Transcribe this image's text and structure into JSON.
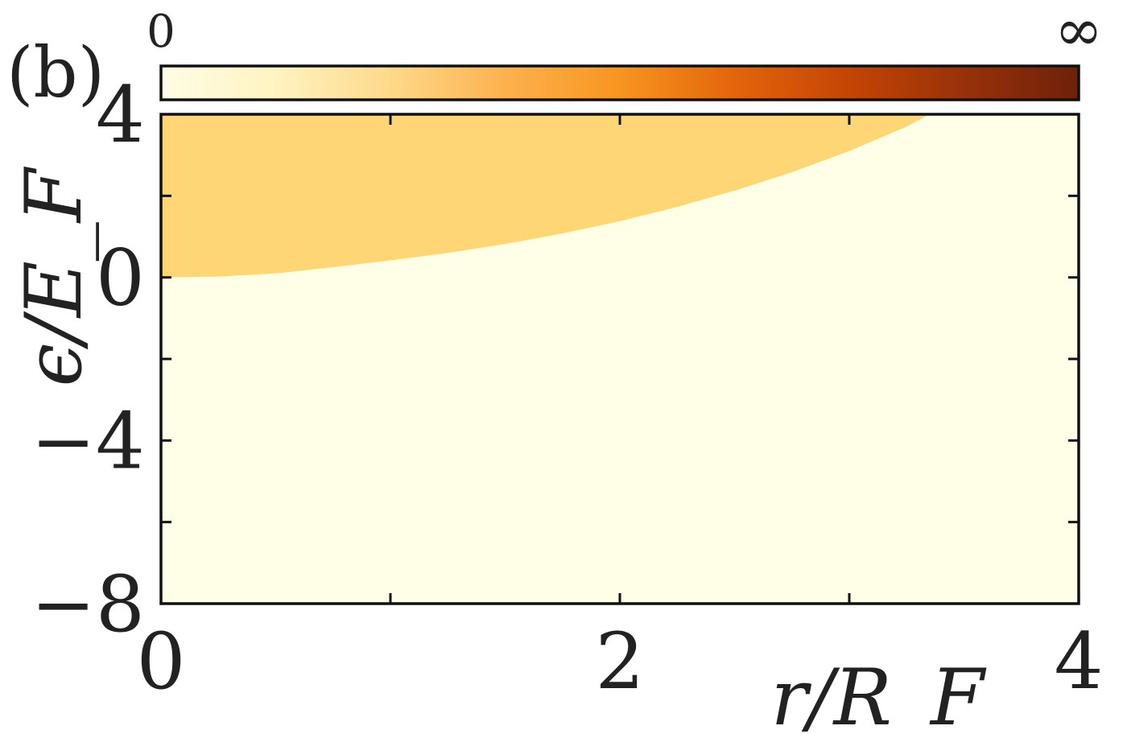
{
  "chart_data": {
    "type": "heatmap",
    "panel_label": "(b)",
    "xlabel": "r/R_F",
    "ylabel": "ϵ/E_F",
    "xlim": [
      0,
      4
    ],
    "ylim": [
      -8,
      4
    ],
    "x_ticks": [
      0,
      1,
      2,
      3,
      4
    ],
    "x_tick_labels": [
      {
        "value": 0,
        "label": "0"
      },
      {
        "value": 2,
        "label": "2"
      },
      {
        "value": 4,
        "label": "4"
      }
    ],
    "y_ticks": [
      -8,
      -6,
      -4,
      -2,
      0,
      2,
      4
    ],
    "y_tick_labels": [
      {
        "value": 4,
        "label": "4"
      },
      {
        "value": 0,
        "label": "0"
      },
      {
        "value": -4,
        "label": "−4"
      },
      {
        "value": -8,
        "label": "−8"
      }
    ],
    "colorbar": {
      "min_label": "0",
      "max_label": "∞",
      "colors": [
        "#fffde6",
        "#fff3c0",
        "#fed98a",
        "#fdb14d",
        "#f8951f",
        "#e2650b",
        "#c44504",
        "#98310a",
        "#6e2109"
      ]
    },
    "regions": [
      {
        "color": "#fed676",
        "description_values": "upper region above boundary curve",
        "boundary": {
          "x": [
            0,
            0.25,
            0.5,
            0.75,
            1.0,
            1.25,
            1.5,
            1.75,
            2.0,
            2.25,
            2.5,
            2.75,
            3.0,
            3.25,
            3.35
          ],
          "y": [
            0,
            0.02,
            0.1,
            0.25,
            0.42,
            0.6,
            0.82,
            1.08,
            1.38,
            1.73,
            2.13,
            2.58,
            3.1,
            3.7,
            4.0
          ]
        }
      },
      {
        "color": "#fffee6",
        "description_values": "lower region below boundary curve"
      }
    ]
  }
}
